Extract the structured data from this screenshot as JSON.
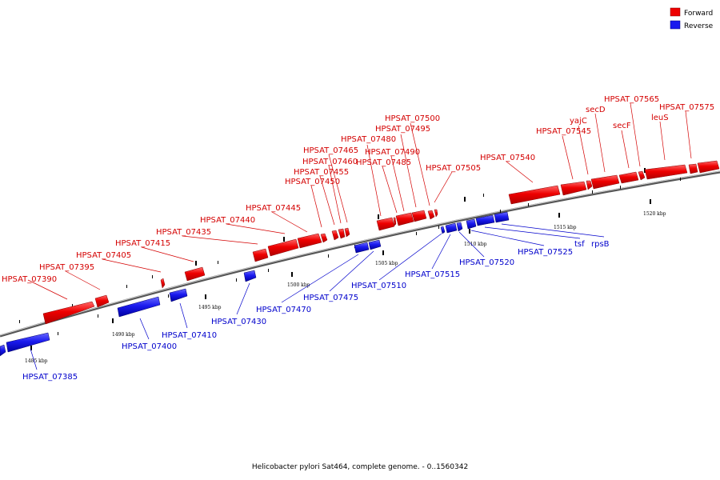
{
  "title": "Helicobacter pylori Sat464, complete genome. - 0..1560342",
  "legend": [
    {
      "label": "Forward",
      "color": "#ee0000"
    },
    {
      "label": "Reverse",
      "color": "#1a1aee"
    }
  ],
  "colors": {
    "forward": "#ee0000",
    "reverse": "#1a1aee",
    "backbone": "#888888"
  },
  "ticks": [
    "1485 kbp",
    "1490 kbp",
    "1495 kbp",
    "1500 kbp",
    "1505 kbp",
    "1510 kbp",
    "1515 kbp",
    "1520 kbp"
  ],
  "genes": {
    "forward": [
      "HPSAT_07390",
      "HPSAT_07395",
      "HPSAT_07405",
      "HPSAT_07415",
      "HPSAT_07435",
      "HPSAT_07440",
      "HPSAT_07445",
      "HPSAT_07450",
      "HPSAT_07455",
      "HPSAT_07460",
      "HPSAT_07465",
      "HPSAT_07480",
      "HPSAT_07485",
      "HPSAT_07490",
      "HPSAT_07495",
      "HPSAT_07500",
      "HPSAT_07505",
      "HPSAT_07540",
      "HPSAT_07545",
      "yajC",
      "secD",
      "secF",
      "HPSAT_07565",
      "leuS",
      "HPSAT_07575"
    ],
    "reverse": [
      "HPSAT_07385",
      "HPSAT_07400",
      "HPSAT_07410",
      "HPSAT_07430",
      "HPSAT_07470",
      "HPSAT_07475",
      "HPSAT_07510",
      "HPSAT_07515",
      "HPSAT_07520",
      "HPSAT_07525",
      "tsf",
      "rpsB"
    ]
  }
}
